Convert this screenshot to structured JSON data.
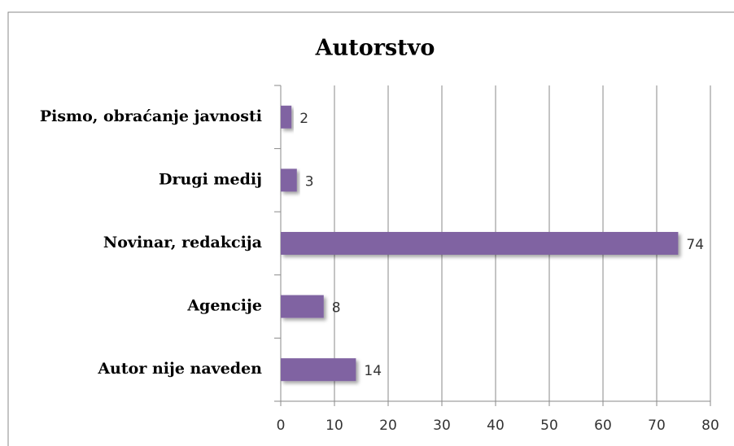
{
  "chart_data": {
    "type": "bar",
    "orientation": "horizontal",
    "title": "Autorstvo",
    "categories": [
      "Pismo, obraćanje javnosti",
      "Drugi medij",
      "Novinar, redakcija",
      "Agencije",
      "Autor nije naveden"
    ],
    "values": [
      2,
      3,
      74,
      8,
      14
    ],
    "color": "#8064a2",
    "xlim": [
      0,
      80
    ],
    "xticks": [
      0,
      10,
      20,
      30,
      40,
      50,
      60,
      70,
      80
    ],
    "grid": true
  }
}
